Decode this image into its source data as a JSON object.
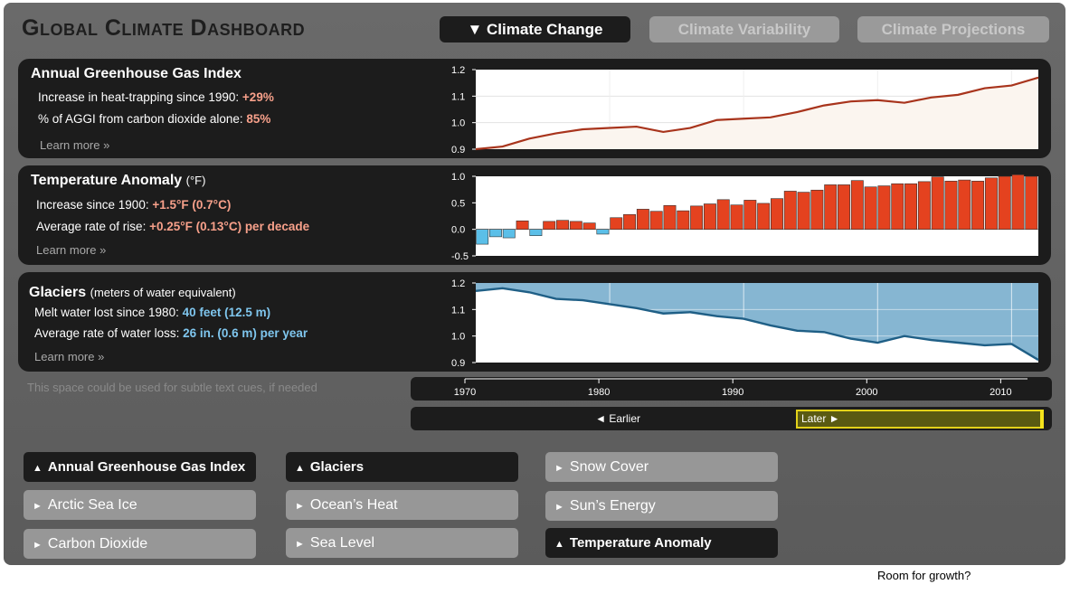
{
  "header": {
    "title": "Global Climate Dashboard",
    "tabs": [
      {
        "label": "Climate Change",
        "icon": "triangle-down-icon",
        "active": true
      },
      {
        "label": "Climate Variability",
        "active": false
      },
      {
        "label": "Climate Projections",
        "active": false
      }
    ]
  },
  "panels": {
    "aggi": {
      "title": "Annual Greenhouse Gas Index",
      "rows": [
        {
          "label": "Increase in heat-trapping since 1990:",
          "value": "+29%"
        },
        {
          "label": "% of AGGI from carbon dioxide alone:",
          "value": "85%"
        }
      ],
      "learn_more": "Learn more »"
    },
    "temperature": {
      "title": "Temperature Anomaly",
      "unit": "(°F)",
      "rows": [
        {
          "label": "Increase since 1900:",
          "value": "+1.5°F (0.7°C)"
        },
        {
          "label": "Average rate of rise:",
          "value": "+0.25°F (0.13°C) per decade"
        }
      ],
      "learn_more": "Learn more »"
    },
    "glaciers": {
      "title": "Glaciers",
      "unit": "(meters of water equivalent)",
      "rows": [
        {
          "label": "Melt water lost since 1980:",
          "value": "40 feet (12.5 m)"
        },
        {
          "label": "Average rate of water loss:",
          "value": "26 in. (0.6 m) per year"
        }
      ],
      "learn_more": "Learn more »"
    }
  },
  "subtle_cue": "This space could be used for subtle text cues, if needed",
  "timeline": {
    "earlier_label": "◄ Earlier",
    "later_label": "Later ►"
  },
  "nav_buttons": [
    {
      "label": "Annual Greenhouse Gas Index",
      "icon": "triangle-up-icon",
      "active": true
    },
    {
      "label": "Glaciers",
      "icon": "triangle-up-icon",
      "active": true
    },
    {
      "label": "Snow Cover",
      "icon": "triangle-right-icon",
      "active": false
    },
    {
      "label": "Arctic Sea Ice",
      "icon": "triangle-right-icon",
      "active": false
    },
    {
      "label": "Ocean’s Heat",
      "icon": "triangle-right-icon",
      "active": false
    },
    {
      "label": "Sun’s Energy",
      "icon": "triangle-right-icon",
      "active": false
    },
    {
      "label": "Carbon Dioxide",
      "icon": "triangle-right-icon",
      "active": false
    },
    {
      "label": "Sea Level",
      "icon": "triangle-right-icon",
      "active": false
    },
    {
      "label": "Temperature Anomaly",
      "icon": "triangle-up-icon",
      "active": true
    }
  ],
  "footer_note": "Room for growth?",
  "colors": {
    "aggi_line": "#a8341c",
    "aggi_fill": "#fbf5ef",
    "temp_positive": "#e4421f",
    "temp_negative": "#5bbfe8",
    "glacier_line": "#1f5f86",
    "glacier_fill": "#86b6d2",
    "highlight": "#e3d21a"
  },
  "chart_data": [
    {
      "type": "line",
      "name": "aggi",
      "x": [
        1970,
        1972,
        1974,
        1976,
        1978,
        1980,
        1982,
        1984,
        1986,
        1988,
        1990,
        1992,
        1994,
        1996,
        1998,
        2000,
        2002,
        2004,
        2006,
        2008,
        2010,
        2012
      ],
      "values": [
        0.9,
        0.91,
        0.94,
        0.96,
        0.975,
        0.98,
        0.985,
        0.965,
        0.98,
        1.01,
        1.015,
        1.02,
        1.04,
        1.065,
        1.08,
        1.085,
        1.075,
        1.095,
        1.105,
        1.13,
        1.14,
        1.17
      ],
      "y_ticks": [
        "1.2",
        "1.1",
        "1.0",
        "0.9"
      ],
      "ylim": [
        0.9,
        1.2
      ],
      "xlim": [
        1970,
        2012
      ],
      "grid": true
    },
    {
      "type": "bar",
      "name": "temperature",
      "x": [
        1970,
        1971,
        1972,
        1973,
        1974,
        1975,
        1976,
        1977,
        1978,
        1979,
        1980,
        1981,
        1982,
        1983,
        1984,
        1985,
        1986,
        1987,
        1988,
        1989,
        1990,
        1991,
        1992,
        1993,
        1994,
        1995,
        1996,
        1997,
        1998,
        1999,
        2000,
        2001,
        2002,
        2003,
        2004,
        2005,
        2006,
        2007,
        2008,
        2009,
        2010,
        2011
      ],
      "values": [
        -0.28,
        -0.14,
        -0.16,
        0.16,
        -0.12,
        0.15,
        0.17,
        0.15,
        0.12,
        -0.09,
        0.22,
        0.28,
        0.38,
        0.34,
        0.45,
        0.35,
        0.44,
        0.48,
        0.56,
        0.46,
        0.55,
        0.49,
        0.58,
        0.72,
        0.7,
        0.74,
        0.84,
        0.84,
        0.92,
        0.8,
        0.82,
        0.86,
        0.86,
        0.9,
        0.99,
        0.91,
        0.93,
        0.91,
        0.97,
        1.0,
        1.03,
        1.0
      ],
      "y_ticks": [
        "1.0",
        "0.5",
        "0.0",
        "-0.5"
      ],
      "ylim": [
        -0.5,
        1.0
      ],
      "xlim": [
        1970,
        2012
      ]
    },
    {
      "type": "area",
      "name": "glaciers",
      "x": [
        1970,
        1972,
        1974,
        1976,
        1978,
        1980,
        1982,
        1984,
        1986,
        1988,
        1990,
        1992,
        1994,
        1996,
        1998,
        2000,
        2002,
        2004,
        2006,
        2008,
        2010,
        2012
      ],
      "values": [
        1.17,
        1.18,
        1.165,
        1.14,
        1.135,
        1.12,
        1.105,
        1.085,
        1.09,
        1.075,
        1.065,
        1.04,
        1.02,
        1.015,
        0.99,
        0.975,
        1.0,
        0.985,
        0.975,
        0.965,
        0.97,
        0.91
      ],
      "y_ticks": [
        "1.2",
        "1.1",
        "1.0",
        "0.9"
      ],
      "ylim": [
        0.9,
        1.2
      ],
      "xlim": [
        1970,
        2012
      ],
      "grid": true
    },
    {
      "type": "axis",
      "name": "time-axis",
      "ticks": [
        1970,
        1980,
        1990,
        2000,
        2010
      ],
      "tick_labels": [
        "1970",
        "1980",
        "1990",
        "2000",
        "2010"
      ],
      "xlim": [
        1970,
        2012
      ]
    }
  ]
}
